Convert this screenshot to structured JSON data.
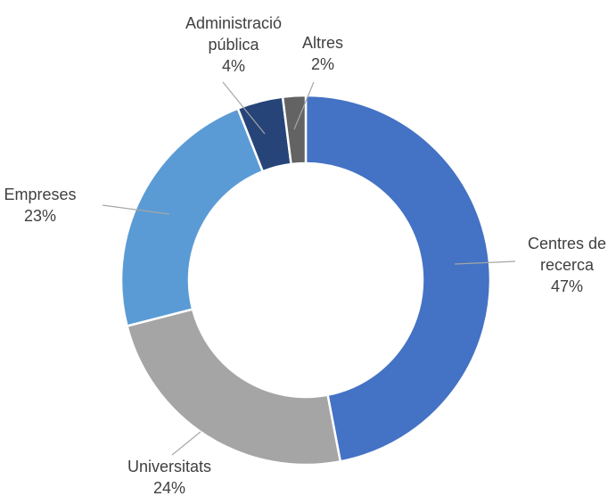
{
  "chart_data": {
    "type": "donut",
    "categories": [
      "Centres de recerca",
      "Universitats",
      "Empreses",
      "Administració pública",
      "Altres"
    ],
    "values": [
      47,
      24,
      23,
      4,
      2
    ],
    "value_labels": [
      "47%",
      "24%",
      "23%",
      "4%",
      "2%"
    ],
    "colors": [
      "#4472c4",
      "#a5a5a5",
      "#5b9bd5",
      "#264478",
      "#636363"
    ]
  }
}
